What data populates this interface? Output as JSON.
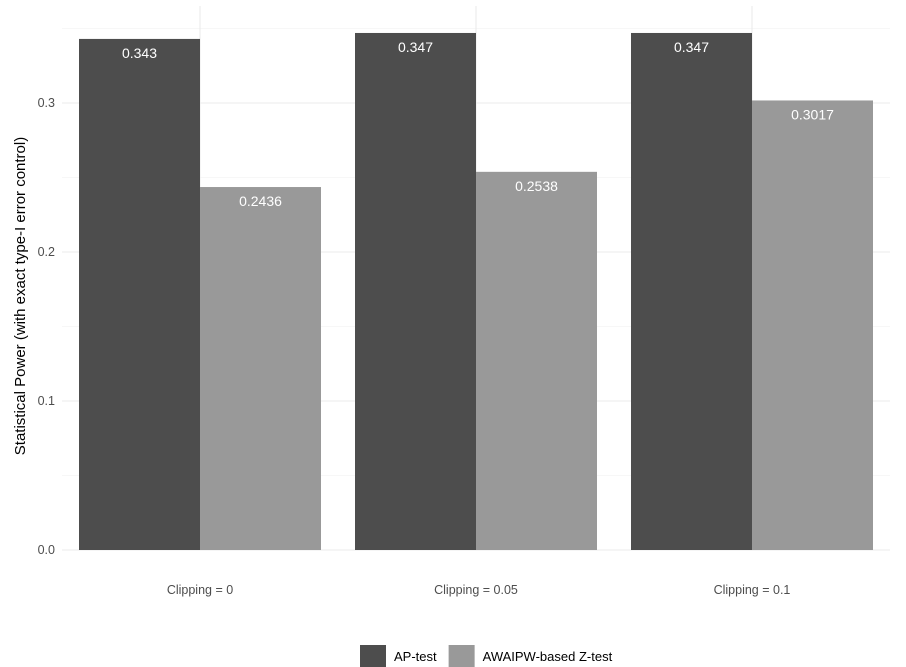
{
  "chart_data": {
    "type": "bar",
    "title": "",
    "xlabel": "",
    "ylabel": "Statistical Power (with exact type-I error control)",
    "categories": [
      "Clipping = 0",
      "Clipping = 0.05",
      "Clipping = 0.1"
    ],
    "series": [
      {
        "name": "AP-test",
        "values": [
          0.343,
          0.347,
          0.347
        ],
        "labels": [
          "0.343",
          "0.347",
          "0.347"
        ],
        "color": "#4d4d4d"
      },
      {
        "name": "AWAIPW-based Z-test",
        "values": [
          0.2436,
          0.2538,
          0.3017
        ],
        "labels": [
          "0.2436",
          "0.2538",
          "0.3017"
        ],
        "color": "#999999"
      }
    ],
    "ylim": [
      0,
      0.35
    ],
    "yticks": [
      0.0,
      0.1,
      0.2,
      0.3
    ],
    "ytick_labels": [
      "0.0",
      "0.1",
      "0.2",
      "0.3"
    ],
    "grid": true,
    "legend_position": "bottom"
  }
}
